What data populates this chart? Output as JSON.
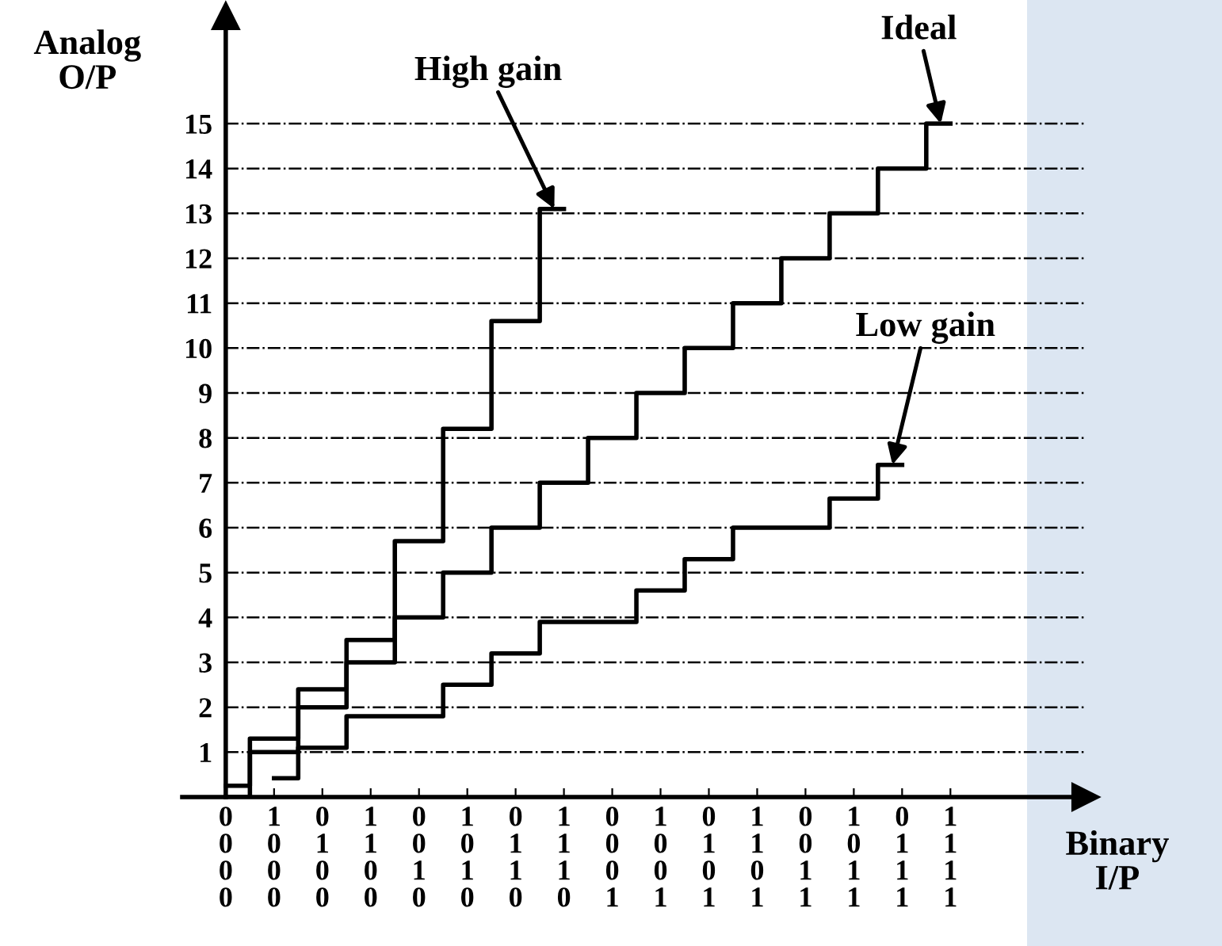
{
  "chart_data": {
    "type": "step",
    "xlabel": "Binary\nI/P",
    "ylabel": "Analog\nO/P",
    "ylim": [
      0,
      17.4
    ],
    "categories": [
      "0\n0\n0\n0",
      "1\n0\n0\n0",
      "0\n1\n0\n0",
      "1\n1\n0\n0",
      "0\n0\n1\n0",
      "1\n0\n1\n0",
      "0\n1\n1\n0",
      "1\n1\n1\n0",
      "0\n0\n0\n1",
      "1\n0\n0\n1",
      "0\n1\n0\n1",
      "1\n1\n0\n1",
      "0\n0\n1\n1",
      "1\n0\n1\n1",
      "0\n1\n1\n1",
      "1\n1\n1\n1"
    ],
    "yticks": [
      1,
      2,
      3,
      4,
      5,
      6,
      7,
      8,
      9,
      10,
      11,
      12,
      13,
      14,
      15
    ],
    "grid": "y",
    "legend": false,
    "series": [
      {
        "name": "High gain",
        "color": "#000000",
        "values": [
          0.25,
          1.3,
          2.4,
          3.5,
          5.7,
          8.2,
          10.6,
          13.1,
          null,
          null,
          null,
          null,
          null,
          null,
          null,
          null
        ]
      },
      {
        "name": "Ideal",
        "color": "#000000",
        "values": [
          0,
          1,
          2,
          3,
          4,
          5,
          6,
          7,
          8,
          9,
          10,
          11,
          12,
          13,
          14,
          15
        ]
      },
      {
        "name": "Low gain",
        "color": "#000000",
        "values": [
          null,
          0.42,
          1.1,
          1.8,
          1.8,
          2.5,
          3.2,
          3.9,
          3.9,
          4.6,
          5.3,
          6.0,
          6.0,
          6.65,
          7.4,
          null
        ]
      }
    ]
  }
}
